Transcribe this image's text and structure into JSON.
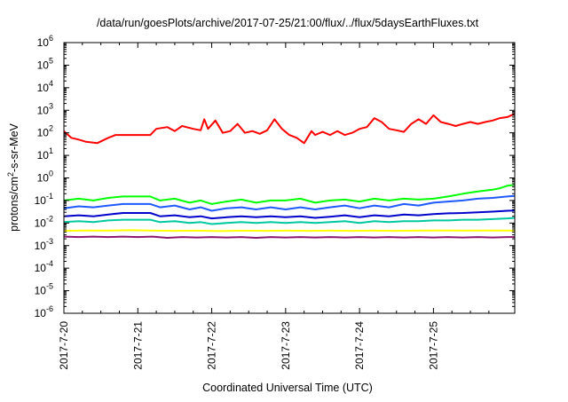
{
  "chart_data": {
    "type": "line",
    "title": "/data/run/goesPlots/archive/2017-07-25/21:00/flux/../flux/5daysEarthFluxes.txt",
    "xlabel": "Coordinated Universal Time (UTC)",
    "ylabel": {
      "prefix": "protons/cm",
      "sup": "2",
      "suffix": "-s-sr-MeV"
    },
    "y_scale": "log",
    "ylim": [
      1e-06,
      1000000.0
    ],
    "xlim": [
      0,
      6.1
    ],
    "grid": false,
    "legend": "none",
    "x_tick_labels": [
      {
        "x": 0,
        "label": "2017-7-20"
      },
      {
        "x": 1,
        "label": "2017-7-21"
      },
      {
        "x": 2,
        "label": "2017-7-22"
      },
      {
        "x": 3,
        "label": "2017-7-23"
      },
      {
        "x": 4,
        "label": "2017-7-24"
      },
      {
        "x": 5,
        "label": "2017-7-25"
      }
    ],
    "y_tick_labels": [
      {
        "exp": -6,
        "base": "10",
        "sup": "-6"
      },
      {
        "exp": -5,
        "base": "10",
        "sup": "-5"
      },
      {
        "exp": -4,
        "base": "10",
        "sup": "-4"
      },
      {
        "exp": -3,
        "base": "10",
        "sup": "-3"
      },
      {
        "exp": -2,
        "base": "10",
        "sup": "-2"
      },
      {
        "exp": -1,
        "base": "10",
        "sup": "-1"
      },
      {
        "exp": 0,
        "base": "10",
        "sup": "0"
      },
      {
        "exp": 1,
        "base": "10",
        "sup": "1"
      },
      {
        "exp": 2,
        "base": "10",
        "sup": "2"
      },
      {
        "exp": 3,
        "base": "10",
        "sup": "3"
      },
      {
        "exp": 4,
        "base": "10",
        "sup": "4"
      },
      {
        "exp": 5,
        "base": "10",
        "sup": "5"
      },
      {
        "exp": 6,
        "base": "10",
        "sup": "6"
      }
    ],
    "series": [
      {
        "color": "#ff0000",
        "x": [
          0,
          0.1,
          0.2,
          0.3,
          0.45,
          0.6,
          0.7,
          0.8,
          1.0,
          1.17,
          1.25,
          1.4,
          1.5,
          1.6,
          1.75,
          1.85,
          1.9,
          1.95,
          2.05,
          2.15,
          2.25,
          2.35,
          2.45,
          2.55,
          2.65,
          2.75,
          2.85,
          2.95,
          3.05,
          3.15,
          3.25,
          3.35,
          3.4,
          3.5,
          3.6,
          3.7,
          3.8,
          3.9,
          4.0,
          4.1,
          4.2,
          4.3,
          4.4,
          4.5,
          4.6,
          4.7,
          4.8,
          4.9,
          5.0,
          5.1,
          5.2,
          5.3,
          5.4,
          5.5,
          5.6,
          5.7,
          5.8,
          5.9,
          6.0,
          6.1
        ],
        "y": [
          120,
          60,
          50,
          40,
          35,
          60,
          80,
          80,
          80,
          80,
          150,
          180,
          120,
          200,
          150,
          130,
          400,
          150,
          350,
          100,
          120,
          250,
          100,
          120,
          90,
          130,
          400,
          150,
          80,
          60,
          35,
          120,
          80,
          110,
          80,
          120,
          80,
          100,
          150,
          180,
          450,
          300,
          150,
          130,
          110,
          250,
          400,
          250,
          600,
          300,
          250,
          200,
          250,
          300,
          250,
          300,
          350,
          450,
          500,
          700
        ]
      },
      {
        "color": "#00ff00",
        "x": [
          0,
          0.2,
          0.4,
          0.6,
          0.8,
          1.17,
          1.3,
          1.5,
          1.7,
          1.85,
          2.0,
          2.2,
          2.4,
          2.6,
          2.8,
          3.0,
          3.2,
          3.4,
          3.6,
          3.8,
          4.0,
          4.2,
          4.4,
          4.6,
          4.8,
          5.0,
          5.2,
          5.4,
          5.6,
          5.8,
          5.9,
          6.0,
          6.1
        ],
        "y": [
          0.1,
          0.12,
          0.1,
          0.13,
          0.15,
          0.15,
          0.1,
          0.12,
          0.08,
          0.1,
          0.07,
          0.09,
          0.11,
          0.08,
          0.1,
          0.1,
          0.12,
          0.08,
          0.1,
          0.11,
          0.09,
          0.12,
          0.1,
          0.12,
          0.11,
          0.12,
          0.15,
          0.2,
          0.25,
          0.3,
          0.35,
          0.45,
          0.5
        ]
      },
      {
        "color": "#1e5aff",
        "x": [
          0,
          0.2,
          0.4,
          0.6,
          0.8,
          1.17,
          1.3,
          1.5,
          1.7,
          1.85,
          2.0,
          2.2,
          2.4,
          2.6,
          2.8,
          3.0,
          3.2,
          3.4,
          3.6,
          3.8,
          4.0,
          4.2,
          4.4,
          4.6,
          4.8,
          5.0,
          5.2,
          5.4,
          5.6,
          5.8,
          6.0,
          6.1
        ],
        "y": [
          0.045,
          0.055,
          0.05,
          0.06,
          0.07,
          0.07,
          0.05,
          0.06,
          0.04,
          0.05,
          0.035,
          0.045,
          0.05,
          0.04,
          0.05,
          0.04,
          0.05,
          0.04,
          0.05,
          0.06,
          0.045,
          0.06,
          0.05,
          0.07,
          0.06,
          0.08,
          0.09,
          0.1,
          0.12,
          0.13,
          0.15,
          0.16
        ]
      },
      {
        "color": "#0000cc",
        "x": [
          0,
          0.2,
          0.4,
          0.6,
          0.8,
          1.17,
          1.3,
          1.5,
          1.7,
          1.85,
          2.0,
          2.2,
          2.4,
          2.6,
          2.8,
          3.0,
          3.2,
          3.4,
          3.6,
          3.8,
          4.0,
          4.2,
          4.4,
          4.6,
          4.8,
          5.0,
          5.2,
          5.4,
          5.6,
          5.8,
          6.0,
          6.1
        ],
        "y": [
          0.02,
          0.022,
          0.02,
          0.024,
          0.028,
          0.028,
          0.02,
          0.022,
          0.018,
          0.02,
          0.016,
          0.018,
          0.02,
          0.018,
          0.02,
          0.018,
          0.02,
          0.017,
          0.019,
          0.022,
          0.018,
          0.022,
          0.02,
          0.024,
          0.022,
          0.025,
          0.027,
          0.028,
          0.03,
          0.032,
          0.035,
          0.036
        ]
      },
      {
        "color": "#00c8a0",
        "x": [
          0,
          0.2,
          0.4,
          0.6,
          0.8,
          1.17,
          1.3,
          1.5,
          1.7,
          1.85,
          2.0,
          2.2,
          2.4,
          2.6,
          2.8,
          3.0,
          3.2,
          3.4,
          3.6,
          3.8,
          4.0,
          4.2,
          4.4,
          4.6,
          4.8,
          5.0,
          5.2,
          5.4,
          5.6,
          5.8,
          6.0,
          6.1
        ],
        "y": [
          0.011,
          0.012,
          0.011,
          0.013,
          0.014,
          0.014,
          0.011,
          0.012,
          0.01,
          0.011,
          0.009,
          0.01,
          0.011,
          0.01,
          0.011,
          0.01,
          0.011,
          0.01,
          0.011,
          0.012,
          0.01,
          0.012,
          0.011,
          0.012,
          0.012,
          0.013,
          0.013,
          0.014,
          0.014,
          0.015,
          0.016,
          0.017
        ]
      },
      {
        "color": "#ffff00",
        "x": [
          0,
          0.3,
          0.6,
          0.9,
          1.2,
          1.5,
          1.8,
          1.95,
          2.1,
          2.4,
          2.7,
          3.0,
          3.3,
          3.6,
          3.9,
          4.2,
          4.5,
          4.8,
          5.1,
          5.4,
          5.7,
          6.1
        ],
        "y": [
          0.0045,
          0.0047,
          0.0046,
          0.0048,
          0.0046,
          0.0045,
          0.0046,
          0.0045,
          0.0044,
          0.0046,
          0.0045,
          0.0046,
          0.0045,
          0.0046,
          0.0045,
          0.0046,
          0.0045,
          0.0046,
          0.0047,
          0.0046,
          0.0047,
          0.0046
        ]
      },
      {
        "color": "#8b1a6e",
        "x": [
          0,
          0.2,
          0.4,
          0.6,
          0.8,
          1.0,
          1.2,
          1.4,
          1.6,
          1.8,
          2.0,
          2.2,
          2.4,
          2.6,
          2.8,
          3.0,
          3.2,
          3.4,
          3.6,
          3.8,
          4.0,
          4.2,
          4.4,
          4.6,
          4.8,
          5.0,
          5.2,
          5.4,
          5.6,
          5.8,
          6.0,
          6.1
        ],
        "y": [
          0.0025,
          0.0024,
          0.0025,
          0.0024,
          0.0025,
          0.0024,
          0.0025,
          0.0022,
          0.0024,
          0.0023,
          0.0024,
          0.0023,
          0.0024,
          0.0022,
          0.0024,
          0.0023,
          0.0024,
          0.0023,
          0.0024,
          0.0023,
          0.0024,
          0.0023,
          0.0024,
          0.0023,
          0.0024,
          0.0023,
          0.0024,
          0.0023,
          0.0024,
          0.0023,
          0.0024,
          0.0024
        ]
      }
    ]
  }
}
